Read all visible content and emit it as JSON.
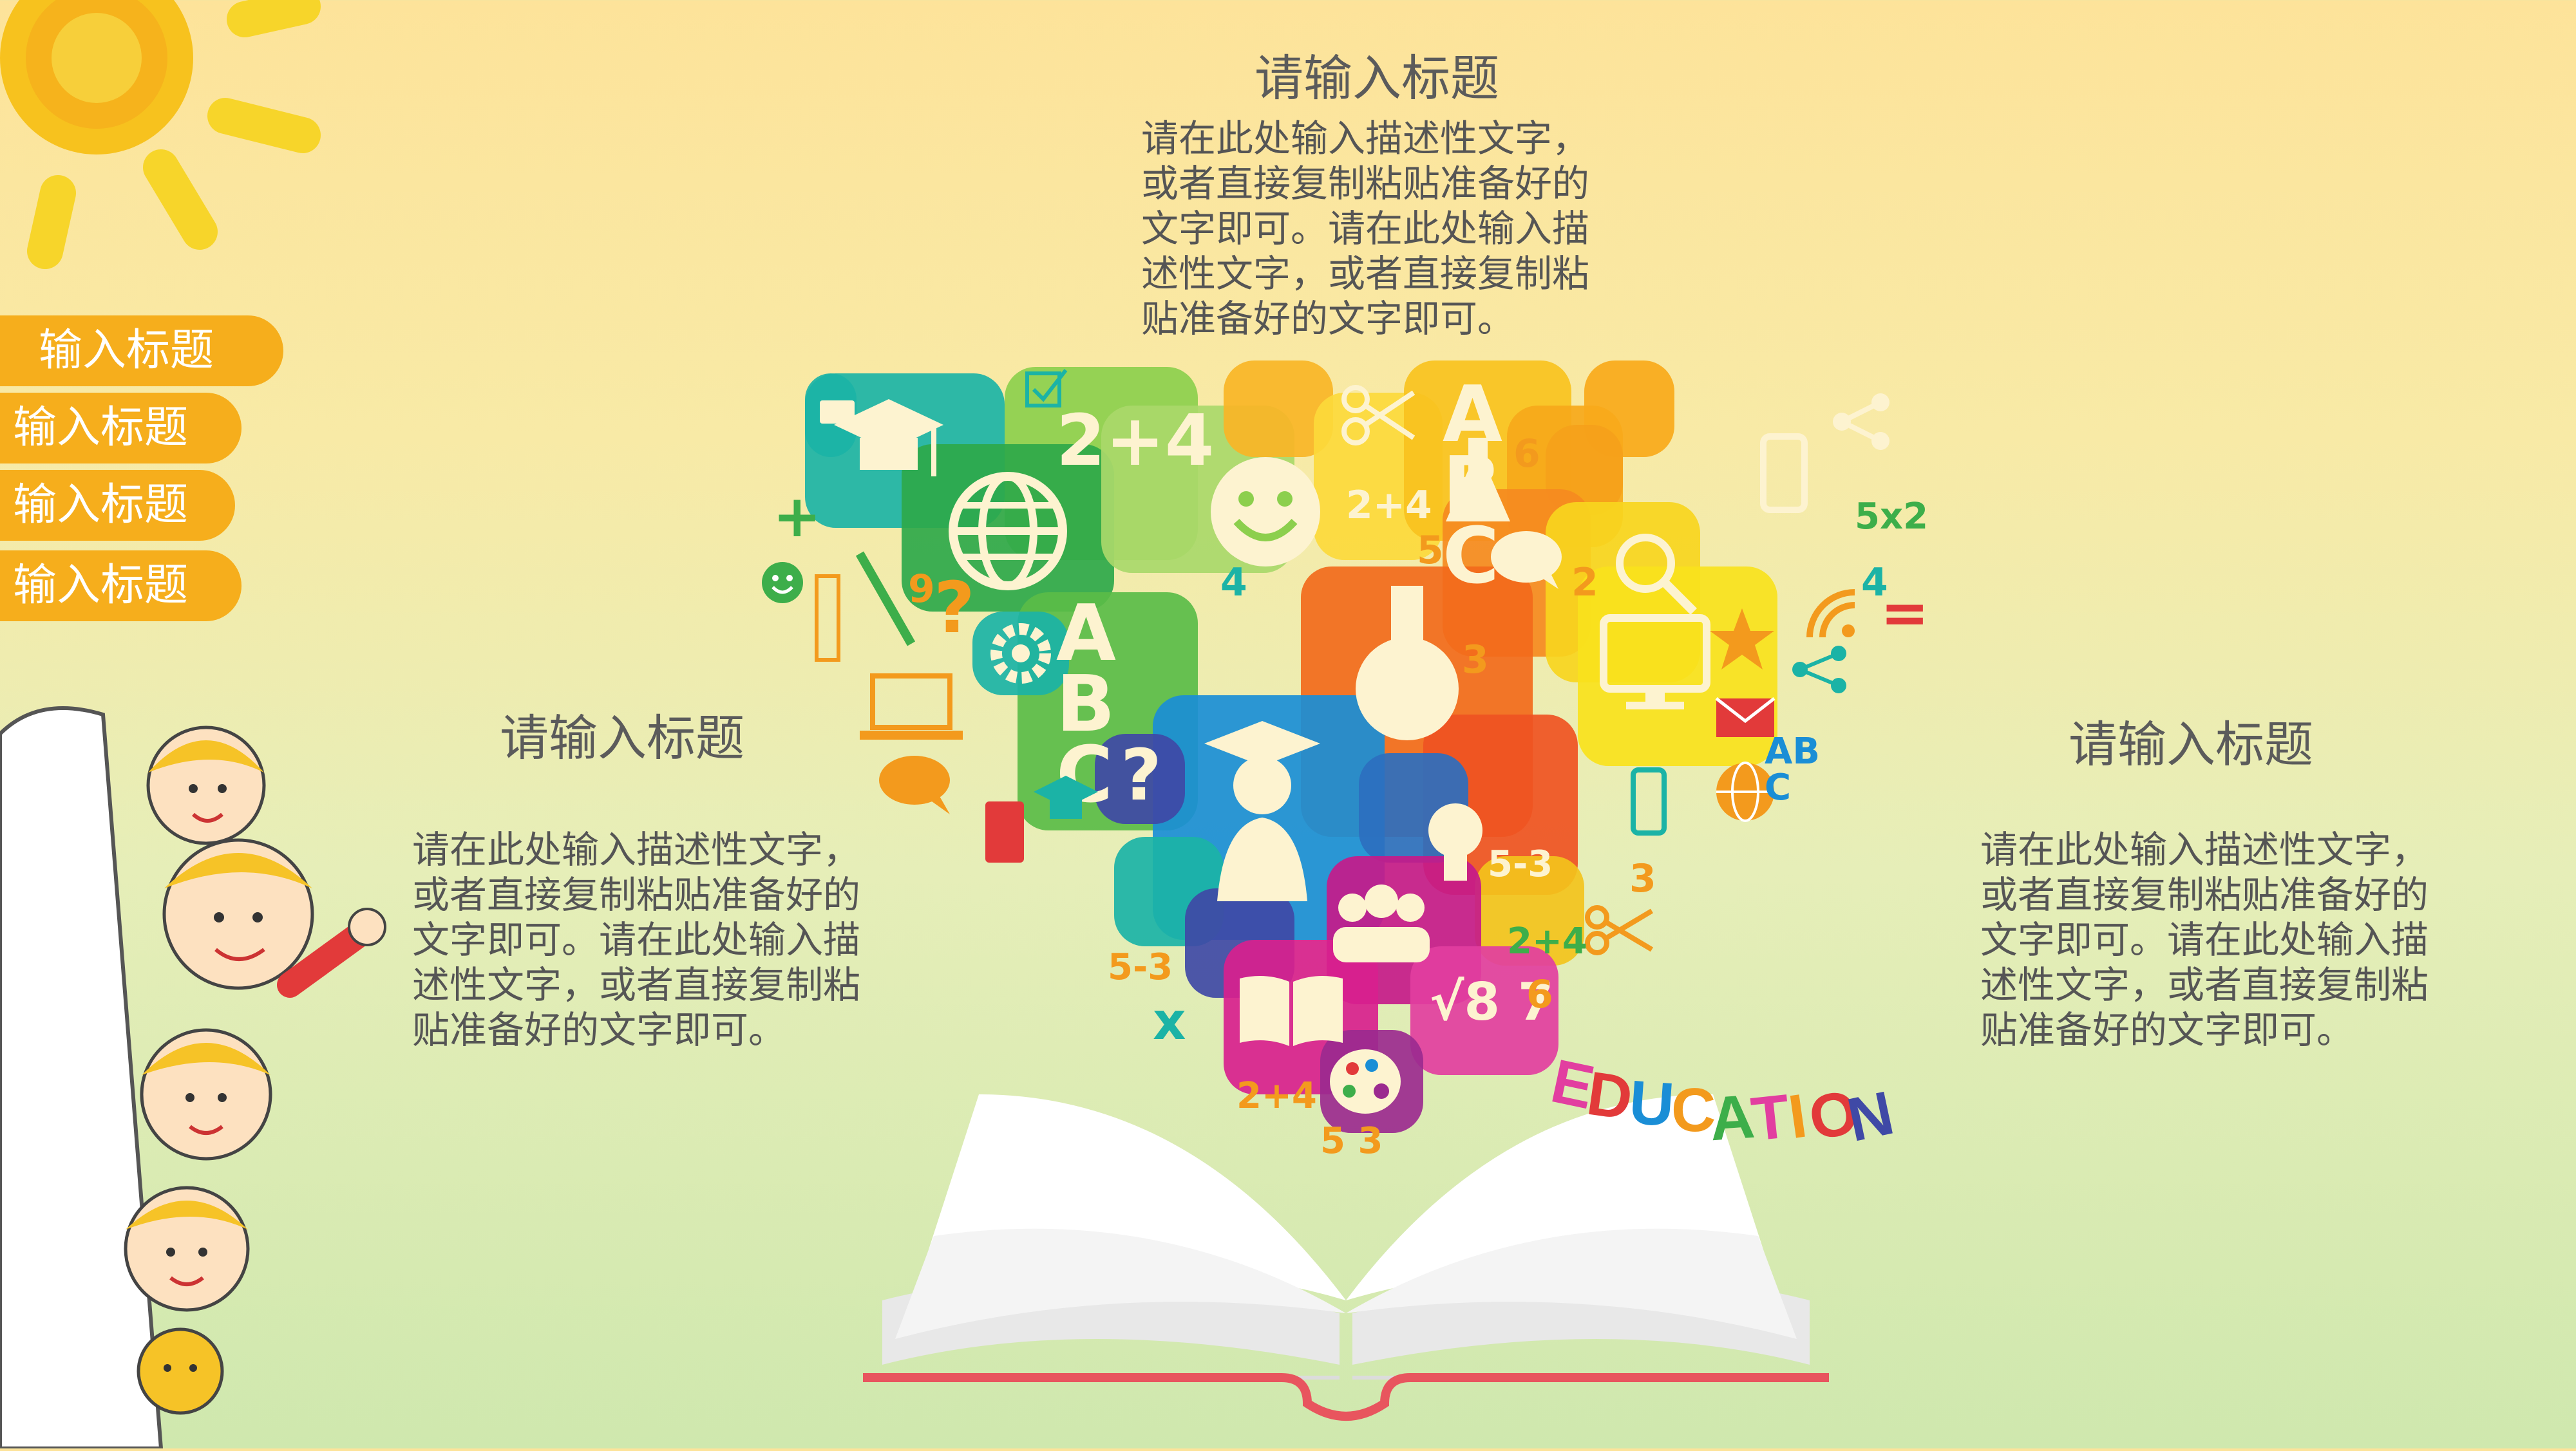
{
  "nav": {
    "items": [
      {
        "label": "输入标题"
      },
      {
        "label": "输入标题"
      },
      {
        "label": "输入标题"
      },
      {
        "label": "输入标题"
      }
    ]
  },
  "top": {
    "title": "请输入标题",
    "lines": [
      "请在此处输入描述性文字，",
      "或者直接复制粘贴准备好的",
      "文字即可。请在此处输入描",
      "述性文字，或者直接复制粘",
      "贴准备好的文字即可。"
    ]
  },
  "left": {
    "title": "请输入标题",
    "lines": [
      "请在此处输入描述性文字，",
      "或者直接复制粘贴准备好的",
      "文字即可。请在此处输入描",
      "述性文字，或者直接复制粘",
      "贴准备好的文字即可。"
    ]
  },
  "right": {
    "title": "请输入标题",
    "lines": [
      "请在此处输入描述性文字，",
      "或者直接复制粘贴准备好的",
      "文字即可。请在此处输入描",
      "述性文字，或者直接复制粘",
      "贴准备好的文字即可。"
    ]
  },
  "illustration": {
    "word": [
      "E",
      "D",
      "U",
      "C",
      "A",
      "T",
      "I",
      "O",
      "N"
    ],
    "tile_glyphs": {
      "sum_a": "2+4",
      "sum_b": "2+4",
      "sum_c": "2+4",
      "sum_d": "2+4",
      "abc_a": "ABC",
      "abc_b": "ABC",
      "abc_c": "ABC",
      "question": "?",
      "mul": "5x2",
      "minus_a": "5-3",
      "minus_b": "5-3",
      "sqrt": "√8 7",
      "times": "x",
      "plus": "+",
      "equals": "=",
      "n4a": "4",
      "n4b": "4",
      "n2": "2",
      "n3a": "3",
      "n3b": "3",
      "n5a": "5",
      "n5b": "5",
      "n6a": "6",
      "n6b": "6",
      "n9": "9",
      "n53": "5 3"
    },
    "icons": [
      "sun-icon",
      "graduation-cap-icon",
      "globe-icon",
      "smiley-icon",
      "flask-icon",
      "scissors-icon",
      "book-icon",
      "palette-icon",
      "lightbulb-icon",
      "monitor-icon",
      "star-icon",
      "magnifier-icon",
      "briefcase-icon",
      "laptop-icon",
      "mobile-phone-icon",
      "chat-bubble-icon",
      "wifi-icon",
      "envelope-icon",
      "gear-icon",
      "ruler-icon",
      "pencil-icon",
      "people-icon",
      "teacher-icon",
      "check-box-icon",
      "share-icon"
    ],
    "colors": {
      "nav": "#f6ae1c",
      "green": "#3dae4a",
      "teal": "#1bb3a6",
      "orange": "#f26a1b",
      "yellow": "#f7d21a",
      "magenta": "#c61a8a",
      "blue": "#1a8ed6",
      "red": "#e23a3a",
      "book_line": "#e8555e"
    }
  }
}
